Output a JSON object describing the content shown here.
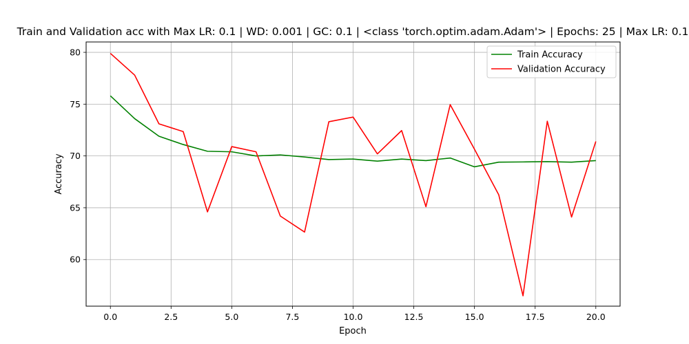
{
  "chart_data": {
    "type": "line",
    "title": "Train and Validation acc with Max LR: 0.1 | WD: 0.001 | GC: 0.1 | <class 'torch.optim.adam.Adam'> | Epochs: 25 | Max LR: 0.1",
    "xlabel": "Epoch",
    "ylabel": "Accuracy",
    "xlim": [
      -1.0,
      21.0
    ],
    "ylim": [
      55.5,
      81.0
    ],
    "xticks": [
      0.0,
      2.5,
      5.0,
      7.5,
      10.0,
      12.5,
      15.0,
      17.5,
      20.0
    ],
    "xtick_labels": [
      "0.0",
      "2.5",
      "5.0",
      "7.5",
      "10.0",
      "12.5",
      "15.0",
      "17.5",
      "20.0"
    ],
    "yticks": [
      60,
      65,
      70,
      75,
      80
    ],
    "ytick_labels": [
      "60",
      "65",
      "70",
      "75",
      "80"
    ],
    "grid": true,
    "legend_position": "top-right",
    "x": [
      0,
      1,
      2,
      3,
      4,
      5,
      6,
      7,
      8,
      9,
      10,
      11,
      12,
      13,
      14,
      15,
      16,
      17,
      18,
      19,
      20
    ],
    "series": [
      {
        "name": "Train Accuracy",
        "color": "#008000",
        "values": [
          75.8,
          73.6,
          71.9,
          71.1,
          70.45,
          70.4,
          70.0,
          70.1,
          69.9,
          69.65,
          69.7,
          69.5,
          69.7,
          69.55,
          69.8,
          68.95,
          69.4,
          69.42,
          69.45,
          69.4,
          69.55
        ]
      },
      {
        "name": "Validation Accuracy",
        "color": "#ff0000",
        "values": [
          79.9,
          77.8,
          73.1,
          72.35,
          64.6,
          70.9,
          70.4,
          64.2,
          62.65,
          73.3,
          73.75,
          70.2,
          72.45,
          65.1,
          74.95,
          70.65,
          66.25,
          56.5,
          73.35,
          64.1,
          71.4
        ]
      }
    ]
  }
}
